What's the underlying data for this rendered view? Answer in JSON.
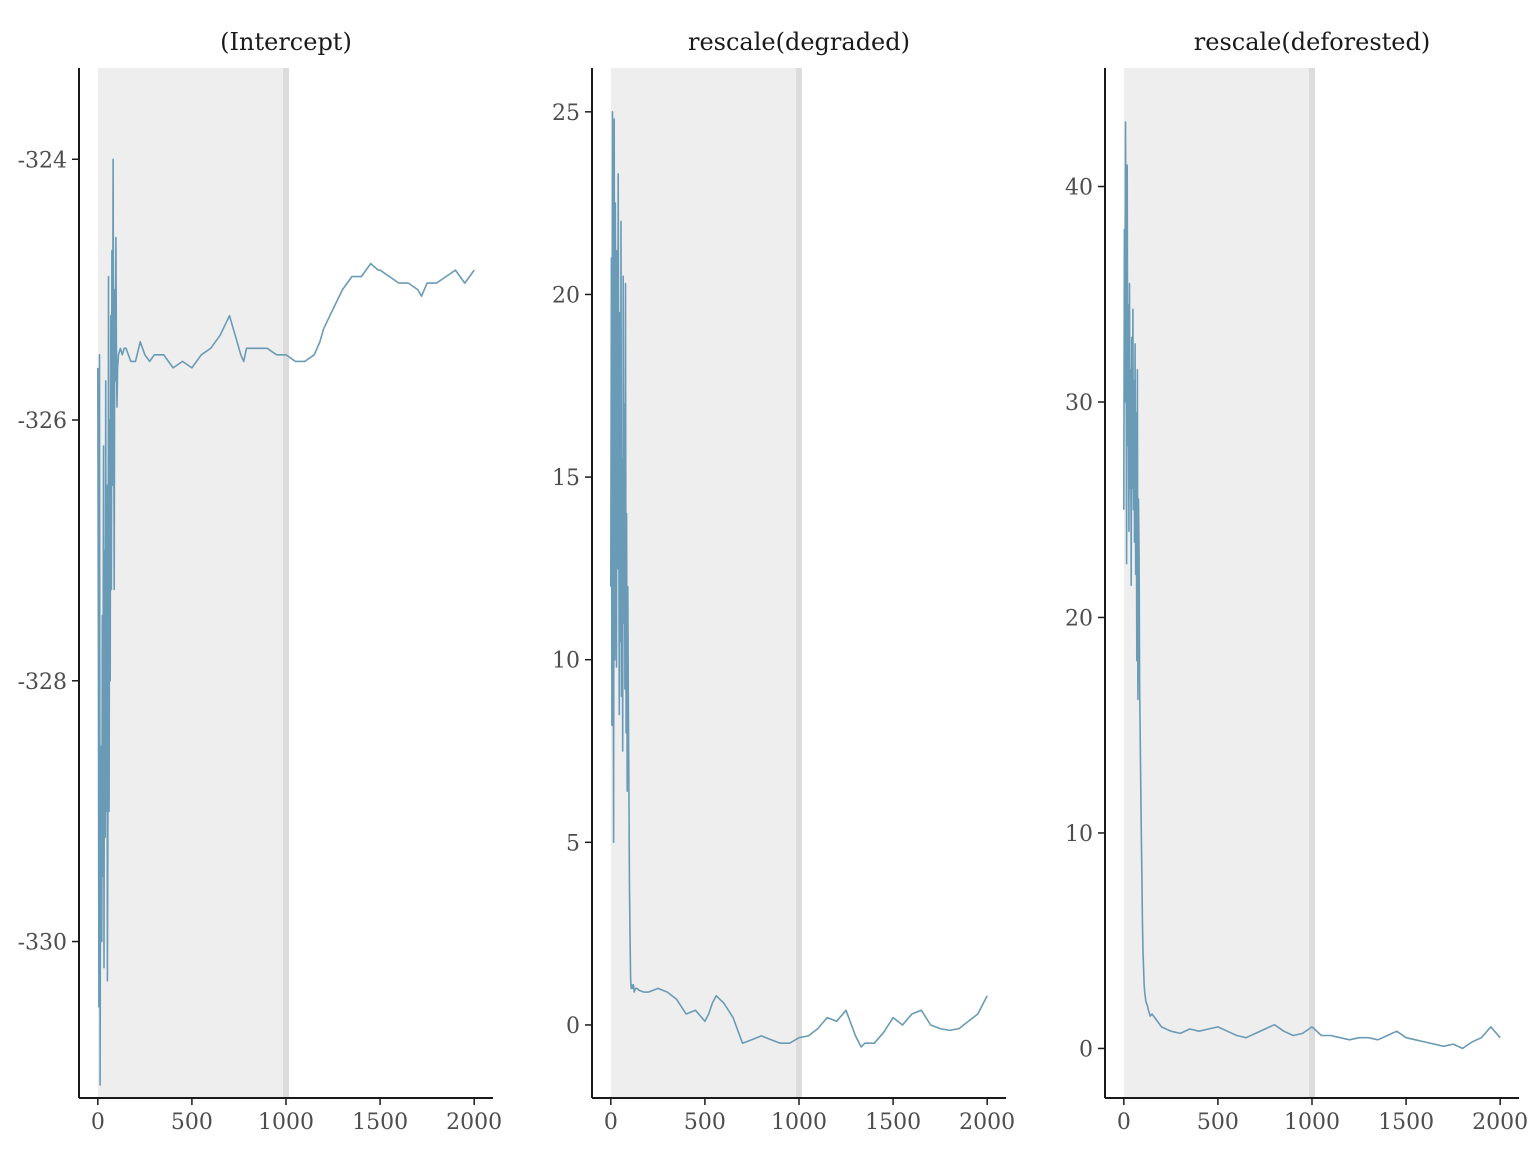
{
  "chart_data": [
    {
      "type": "line",
      "title": "(Intercept)",
      "xlim": [
        -100,
        2100
      ],
      "ylim": [
        -331.2,
        -323.3
      ],
      "xticks": [
        0,
        500,
        1000,
        1500,
        2000
      ],
      "xtick_labels": [
        "0",
        "500",
        "1000",
        "1500",
        "2000"
      ],
      "yticks": [
        -324,
        -326,
        -328,
        -330
      ],
      "ytick_labels": [
        "-324",
        "-326",
        "-328",
        "-330"
      ],
      "warmup_end": 1000,
      "series": [
        {
          "x": [
            0,
            3,
            6,
            9,
            12,
            15,
            18,
            21,
            24,
            27,
            30,
            33,
            36,
            39,
            42,
            45,
            48,
            51,
            54,
            57,
            60,
            63,
            66,
            69,
            72,
            75,
            78,
            81,
            84,
            87,
            90,
            93,
            96,
            99,
            102,
            105,
            110,
            120,
            130,
            140,
            150,
            175,
            200,
            225,
            250,
            275,
            300,
            350,
            400,
            450,
            500,
            550,
            600,
            650,
            700,
            720,
            740,
            760,
            775,
            790,
            800,
            850,
            900,
            950,
            1000,
            1050,
            1100,
            1150,
            1180,
            1200,
            1250,
            1300,
            1350,
            1400,
            1450,
            1490,
            1500,
            1550,
            1600,
            1650,
            1700,
            1720,
            1750,
            1800,
            1850,
            1900,
            1950,
            2000
          ],
          "values": [
            -325.6,
            -327.8,
            -330.5,
            -325.5,
            -331.1,
            -329.0,
            -328.5,
            -330.0,
            -327.5,
            -329.5,
            -326.2,
            -330.2,
            -327.0,
            -329.2,
            -325.7,
            -329.0,
            -326.5,
            -330.3,
            -328.8,
            -324.9,
            -329.0,
            -326.0,
            -328.0,
            -325.2,
            -327.3,
            -324.7,
            -326.5,
            -324.0,
            -325.7,
            -327.3,
            -325.0,
            -325.7,
            -324.6,
            -325.4,
            -325.9,
            -325.6,
            -325.5,
            -325.45,
            -325.5,
            -325.45,
            -325.45,
            -325.55,
            -325.55,
            -325.4,
            -325.5,
            -325.55,
            -325.5,
            -325.5,
            -325.6,
            -325.55,
            -325.6,
            -325.5,
            -325.45,
            -325.35,
            -325.2,
            -325.3,
            -325.4,
            -325.5,
            -325.55,
            -325.45,
            -325.45,
            -325.45,
            -325.45,
            -325.5,
            -325.5,
            -325.55,
            -325.55,
            -325.5,
            -325.4,
            -325.3,
            -325.15,
            -325.0,
            -324.9,
            -324.9,
            -324.8,
            -324.85,
            -324.85,
            -324.9,
            -324.95,
            -324.95,
            -325.0,
            -325.05,
            -324.95,
            -324.95,
            -324.9,
            -324.85,
            -324.95,
            -324.85
          ],
          "color": "#6a9bb6"
        }
      ]
    },
    {
      "type": "line",
      "title": "rescale(degraded)",
      "xlim": [
        -100,
        2100
      ],
      "ylim": [
        -2,
        26.2
      ],
      "xticks": [
        0,
        500,
        1000,
        1500,
        2000
      ],
      "xtick_labels": [
        "0",
        "500",
        "1000",
        "1500",
        "2000"
      ],
      "yticks": [
        0,
        5,
        10,
        15,
        20,
        25
      ],
      "ytick_labels": [
        "0",
        "5",
        "10",
        "15",
        "20",
        "25"
      ],
      "warmup_end": 1000,
      "series": [
        {
          "x": [
            0,
            3,
            6,
            9,
            12,
            15,
            18,
            21,
            24,
            27,
            30,
            33,
            36,
            39,
            42,
            45,
            48,
            51,
            54,
            57,
            60,
            63,
            66,
            69,
            72,
            75,
            78,
            81,
            84,
            87,
            90,
            93,
            96,
            99,
            102,
            105,
            108,
            111,
            114,
            117,
            120,
            125,
            130,
            140,
            150,
            175,
            200,
            250,
            300,
            350,
            400,
            450,
            500,
            520,
            540,
            560,
            580,
            600,
            650,
            700,
            750,
            800,
            850,
            900,
            950,
            1000,
            1050,
            1100,
            1150,
            1200,
            1250,
            1300,
            1330,
            1350,
            1400,
            1450,
            1500,
            1550,
            1600,
            1650,
            1700,
            1750,
            1800,
            1850,
            1900,
            1950,
            2000
          ],
          "values": [
            12.0,
            21.0,
            8.2,
            25.0,
            14.0,
            5.0,
            24.8,
            10.0,
            22.5,
            18.0,
            9.8,
            21.2,
            12.5,
            23.3,
            16.0,
            8.5,
            19.5,
            10.5,
            22.0,
            9.0,
            15.5,
            7.5,
            20.5,
            11.0,
            17.0,
            9.2,
            20.3,
            8.0,
            14.0,
            6.4,
            12.0,
            9.0,
            6.5,
            4.0,
            2.5,
            1.3,
            1.0,
            1.1,
            1.0,
            1.05,
            1.1,
            0.9,
            1.0,
            1.0,
            0.95,
            0.9,
            0.9,
            1.0,
            0.9,
            0.7,
            0.3,
            0.4,
            0.1,
            0.3,
            0.6,
            0.8,
            0.7,
            0.6,
            0.2,
            -0.5,
            -0.4,
            -0.3,
            -0.4,
            -0.5,
            -0.5,
            -0.35,
            -0.3,
            -0.1,
            0.2,
            0.1,
            0.4,
            -0.3,
            -0.6,
            -0.5,
            -0.5,
            -0.2,
            0.2,
            0.0,
            0.3,
            0.4,
            0.0,
            -0.1,
            -0.15,
            -0.1,
            0.1,
            0.3,
            0.8
          ],
          "color": "#6a9bb6"
        }
      ]
    },
    {
      "type": "line",
      "title": "rescale(deforested)",
      "xlim": [
        -100,
        2100
      ],
      "ylim": [
        -2.3,
        45.5
      ],
      "xticks": [
        0,
        500,
        1000,
        1500,
        2000
      ],
      "xtick_labels": [
        "0",
        "500",
        "1000",
        "1500",
        "2000"
      ],
      "yticks": [
        0,
        10,
        20,
        30,
        40
      ],
      "ytick_labels": [
        "0",
        "10",
        "20",
        "30",
        "40"
      ],
      "warmup_end": 1000,
      "series": [
        {
          "x": [
            0,
            3,
            6,
            9,
            12,
            15,
            18,
            21,
            24,
            27,
            30,
            33,
            36,
            39,
            42,
            45,
            48,
            51,
            54,
            57,
            60,
            63,
            66,
            69,
            72,
            75,
            78,
            81,
            84,
            87,
            90,
            93,
            96,
            99,
            102,
            105,
            108,
            111,
            114,
            117,
            120,
            125,
            130,
            140,
            150,
            175,
            200,
            250,
            300,
            350,
            400,
            450,
            500,
            550,
            600,
            650,
            700,
            750,
            800,
            850,
            900,
            950,
            1000,
            1050,
            1100,
            1150,
            1200,
            1250,
            1300,
            1350,
            1400,
            1450,
            1500,
            1550,
            1600,
            1650,
            1700,
            1750,
            1800,
            1850,
            1900,
            1950,
            2000
          ],
          "values": [
            25.0,
            38.0,
            30.0,
            43.0,
            35.0,
            22.5,
            41.0,
            28.0,
            34.5,
            24.0,
            35.5,
            26.0,
            31.5,
            21.5,
            33.0,
            26.0,
            34.3,
            25.0,
            31.0,
            23.5,
            32.7,
            22.0,
            29.5,
            18.0,
            31.5,
            16.2,
            25.5,
            22.8,
            17.0,
            14.5,
            12.0,
            10.0,
            8.0,
            6.0,
            4.5,
            3.7,
            3.0,
            2.6,
            2.4,
            2.2,
            2.1,
            2.0,
            1.8,
            1.5,
            1.6,
            1.3,
            1.0,
            0.8,
            0.7,
            0.9,
            0.8,
            0.9,
            1.0,
            0.8,
            0.6,
            0.5,
            0.7,
            0.9,
            1.1,
            0.8,
            0.6,
            0.7,
            1.0,
            0.6,
            0.6,
            0.5,
            0.4,
            0.5,
            0.5,
            0.4,
            0.6,
            0.8,
            0.5,
            0.4,
            0.3,
            0.2,
            0.1,
            0.2,
            0.0,
            0.3,
            0.5,
            1.0,
            0.5
          ],
          "color": "#6a9bb6"
        }
      ]
    }
  ]
}
